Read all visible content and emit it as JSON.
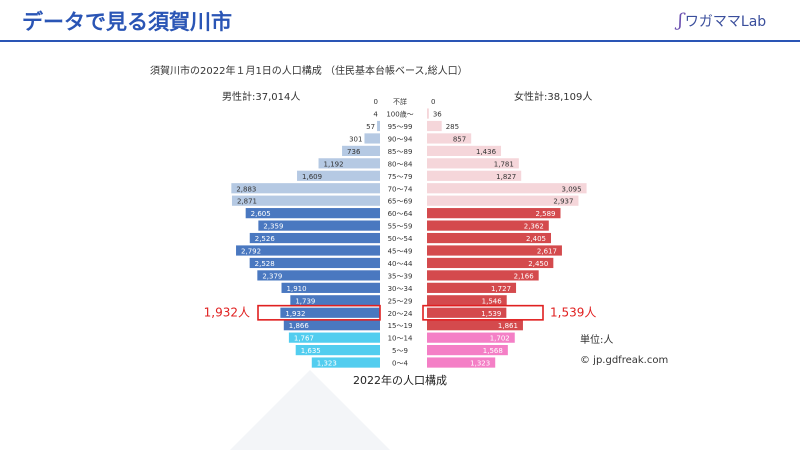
{
  "header": {
    "title": "データで見る須賀川市",
    "logo_text": "ワガママLab"
  },
  "chart_data": {
    "type": "bar",
    "subtitle": "須賀川市の2022年１月1日の人口構成 （住民基本台帳ベース,総人口）",
    "male_total_label": "男性計:37,014人",
    "female_total_label": "女性計:38,109人",
    "unit_label": "単位:人",
    "credit": "© jp.gdfreak.com",
    "caption": "2022年の人口構成",
    "categories": [
      "不詳",
      "100歳～",
      "95～99",
      "90～94",
      "85～89",
      "80～84",
      "75～79",
      "70～74",
      "65～69",
      "60～64",
      "55～59",
      "50～54",
      "45～49",
      "40～44",
      "35～39",
      "30～34",
      "25～29",
      "20～24",
      "15～19",
      "10～14",
      "5～9",
      "0～4"
    ],
    "series": [
      {
        "name": "男性",
        "values": [
          0,
          4,
          57,
          301,
          736,
          1192,
          1609,
          2883,
          2871,
          2605,
          2359,
          2526,
          2792,
          2528,
          2379,
          1910,
          1739,
          1932,
          1866,
          1767,
          1635,
          1323
        ],
        "labels": [
          "0",
          "4",
          "57",
          "301",
          "736",
          "1,192",
          "1,609",
          "2,883",
          "2,871",
          "2,605",
          "2,359",
          "2,526",
          "2,792",
          "2,528",
          "2,379",
          "1,910",
          "1,739",
          "1,932",
          "1,866",
          "1,767",
          "1,635",
          "1,323"
        ]
      },
      {
        "name": "女性",
        "values": [
          0,
          36,
          285,
          857,
          1436,
          1781,
          1827,
          3095,
          2937,
          2589,
          2362,
          2405,
          2617,
          2450,
          2166,
          1727,
          1546,
          1539,
          1861,
          1702,
          1568,
          1323
        ],
        "labels": [
          "0",
          "36",
          "285",
          "857",
          "1,436",
          "1,781",
          "1,827",
          "3,095",
          "2,937",
          "2,589",
          "2,362",
          "2,405",
          "2,617",
          "2,450",
          "2,166",
          "1,727",
          "1,546",
          "1,539",
          "1,861",
          "1,702",
          "1,568",
          "1,323"
        ]
      }
    ],
    "xlim": [
      0,
      3200
    ],
    "highlight": {
      "category": "20～24",
      "male_label": "1,932人",
      "female_label": "1,539人"
    },
    "colors": {
      "male_elderly": "#b5c9e3",
      "male_working": "#4a78c0",
      "male_young": "#52cdef",
      "female_elderly": "#f5d6da",
      "female_working": "#d44a4d",
      "female_young": "#f47fc6",
      "highlight": "#e02020",
      "title": "#2a55b5"
    }
  }
}
